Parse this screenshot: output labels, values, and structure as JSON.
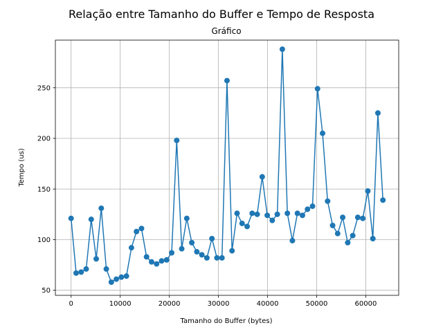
{
  "figure": {
    "suptitle": "Relação entre Tamanho do Buffer e Tempo de Resposta"
  },
  "chart_data": {
    "type": "line",
    "title": "Gráfico",
    "xlabel": "Tamanho do Buffer (bytes)",
    "ylabel": "Tempo (us)",
    "xlim": [
      -3200,
      66700
    ],
    "ylim": [
      45,
      297
    ],
    "xticks": [
      0,
      10000,
      20000,
      30000,
      40000,
      50000,
      60000
    ],
    "yticks": [
      50,
      100,
      150,
      200,
      250
    ],
    "grid": true,
    "marker": "circle",
    "series_color": "#1f77b4",
    "x": [
      0,
      1024,
      2048,
      3072,
      4096,
      5120,
      6144,
      7168,
      8192,
      9216,
      10240,
      11264,
      12288,
      13312,
      14336,
      15360,
      16384,
      17408,
      18432,
      19456,
      20480,
      21504,
      22528,
      23552,
      24576,
      25600,
      26624,
      27648,
      28672,
      29696,
      30720,
      31744,
      32768,
      33792,
      34816,
      35840,
      36864,
      37888,
      38912,
      39936,
      40960,
      41984,
      43008,
      44032,
      45056,
      46080,
      47104,
      48128,
      49152,
      50176,
      51200,
      52224,
      53248,
      54272,
      55296,
      56320,
      57344,
      58368,
      59392,
      60416,
      61440,
      62464,
      63488
    ],
    "y": [
      121,
      67,
      68,
      71,
      120,
      81,
      131,
      71,
      58,
      61,
      63,
      64,
      92,
      108,
      111,
      83,
      78,
      76,
      79,
      80,
      87,
      198,
      91,
      121,
      97,
      88,
      85,
      82,
      101,
      82,
      82,
      257,
      89,
      126,
      116,
      113,
      126,
      125,
      162,
      124,
      119,
      125,
      288,
      126,
      99,
      126,
      124,
      130,
      133,
      249,
      205,
      138,
      114,
      106,
      122,
      97,
      104,
      122,
      121,
      148,
      101,
      225,
      139
    ]
  }
}
